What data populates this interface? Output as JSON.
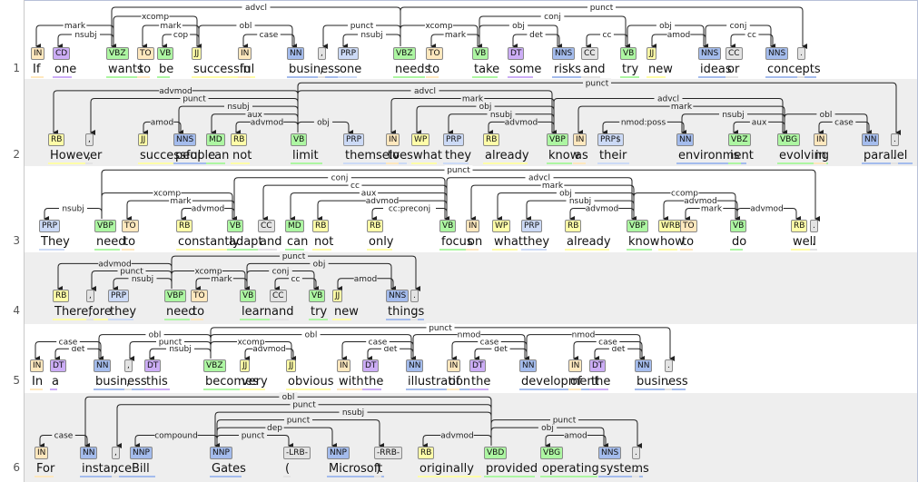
{
  "sentences": [
    {
      "num": "1",
      "tokens": [
        {
          "w": "If",
          "t": "IN"
        },
        {
          "w": "one",
          "t": "CD"
        },
        {
          "w": "wants",
          "t": "VBZ"
        },
        {
          "w": "to",
          "t": "TO"
        },
        {
          "w": "be",
          "t": "VB"
        },
        {
          "w": "successful",
          "t": "JJ"
        },
        {
          "w": "in",
          "t": "IN"
        },
        {
          "w": "business",
          "t": "NN"
        },
        {
          "w": ",",
          "t": ","
        },
        {
          "w": "one",
          "t": "PRP"
        },
        {
          "w": "needs",
          "t": "VBZ"
        },
        {
          "w": "to",
          "t": "TO"
        },
        {
          "w": "take",
          "t": "VB"
        },
        {
          "w": "some",
          "t": "DT"
        },
        {
          "w": "risks",
          "t": "NNS"
        },
        {
          "w": "and",
          "t": "CC"
        },
        {
          "w": "try",
          "t": "VB"
        },
        {
          "w": "new",
          "t": "JJ"
        },
        {
          "w": "ideas",
          "t": "NNS"
        },
        {
          "w": "or",
          "t": "CC"
        },
        {
          "w": "concepts",
          "t": "NNS"
        },
        {
          "w": ".",
          "t": "."
        }
      ],
      "arcs": [
        {
          "h": 2,
          "d": 0,
          "l": "mark"
        },
        {
          "h": 2,
          "d": 1,
          "l": "nsubj"
        },
        {
          "h": 2,
          "d": 5,
          "l": "xcomp"
        },
        {
          "h": 5,
          "d": 3,
          "l": "mark"
        },
        {
          "h": 5,
          "d": 4,
          "l": "cop"
        },
        {
          "h": 5,
          "d": 7,
          "l": "obl"
        },
        {
          "h": 7,
          "d": 6,
          "l": "case"
        },
        {
          "h": 10,
          "d": 2,
          "l": "advcl"
        },
        {
          "h": 10,
          "d": 8,
          "l": "punct"
        },
        {
          "h": 10,
          "d": 9,
          "l": "nsubj"
        },
        {
          "h": 10,
          "d": 12,
          "l": "xcomp"
        },
        {
          "h": 12,
          "d": 11,
          "l": "mark"
        },
        {
          "h": 12,
          "d": 14,
          "l": "obj"
        },
        {
          "h": 14,
          "d": 13,
          "l": "det"
        },
        {
          "h": 12,
          "d": 16,
          "l": "conj"
        },
        {
          "h": 16,
          "d": 15,
          "l": "cc"
        },
        {
          "h": 16,
          "d": 18,
          "l": "obj"
        },
        {
          "h": 18,
          "d": 17,
          "l": "amod"
        },
        {
          "h": 18,
          "d": 20,
          "l": "conj"
        },
        {
          "h": 20,
          "d": 19,
          "l": "cc"
        },
        {
          "h": 10,
          "d": 21,
          "l": "punct"
        }
      ]
    },
    {
      "num": "2",
      "tokens": [
        {
          "w": "However",
          "t": "RB"
        },
        {
          "w": ",",
          "t": ","
        },
        {
          "w": "successful",
          "t": "JJ"
        },
        {
          "w": "people",
          "t": "NNS"
        },
        {
          "w": "can",
          "t": "MD"
        },
        {
          "w": "not",
          "t": "RB"
        },
        {
          "w": "limit",
          "t": "VB"
        },
        {
          "w": "themselves",
          "t": "PRP"
        },
        {
          "w": "to",
          "t": "IN"
        },
        {
          "w": "what",
          "t": "WP"
        },
        {
          "w": "they",
          "t": "PRP"
        },
        {
          "w": "already",
          "t": "RB"
        },
        {
          "w": "know",
          "t": "VBP"
        },
        {
          "w": "as",
          "t": "IN"
        },
        {
          "w": "their",
          "t": "PRP$"
        },
        {
          "w": "environment",
          "t": "NN"
        },
        {
          "w": "is",
          "t": "VBZ"
        },
        {
          "w": "evolving",
          "t": "VBG"
        },
        {
          "w": "in",
          "t": "IN"
        },
        {
          "w": "parallel",
          "t": "NN"
        },
        {
          "w": ".",
          "t": "."
        }
      ],
      "arcs": [
        {
          "h": 6,
          "d": 0,
          "l": "advmod"
        },
        {
          "h": 6,
          "d": 1,
          "l": "punct"
        },
        {
          "h": 3,
          "d": 2,
          "l": "amod"
        },
        {
          "h": 6,
          "d": 3,
          "l": "nsubj"
        },
        {
          "h": 6,
          "d": 4,
          "l": "aux"
        },
        {
          "h": 6,
          "d": 5,
          "l": "advmod"
        },
        {
          "h": 6,
          "d": 7,
          "l": "obj"
        },
        {
          "h": 6,
          "d": 12,
          "l": "advcl"
        },
        {
          "h": 12,
          "d": 8,
          "l": "mark"
        },
        {
          "h": 12,
          "d": 9,
          "l": "obj"
        },
        {
          "h": 12,
          "d": 10,
          "l": "nsubj"
        },
        {
          "h": 12,
          "d": 11,
          "l": "advmod"
        },
        {
          "h": 12,
          "d": 17,
          "l": "advcl"
        },
        {
          "h": 17,
          "d": 13,
          "l": "mark"
        },
        {
          "h": 15,
          "d": 14,
          "l": "nmod:poss"
        },
        {
          "h": 17,
          "d": 15,
          "l": "nsubj"
        },
        {
          "h": 17,
          "d": 16,
          "l": "aux"
        },
        {
          "h": 17,
          "d": 19,
          "l": "obl"
        },
        {
          "h": 19,
          "d": 18,
          "l": "case"
        },
        {
          "h": 6,
          "d": 20,
          "l": "punct"
        }
      ]
    },
    {
      "num": "3",
      "tokens": [
        {
          "w": "They",
          "t": "PRP"
        },
        {
          "w": "need",
          "t": "VBP"
        },
        {
          "w": "to",
          "t": "TO"
        },
        {
          "w": "constantly",
          "t": "RB"
        },
        {
          "w": "adapt",
          "t": "VB"
        },
        {
          "w": "and",
          "t": "CC"
        },
        {
          "w": "can",
          "t": "MD"
        },
        {
          "w": "not",
          "t": "RB"
        },
        {
          "w": "only",
          "t": "RB"
        },
        {
          "w": "focus",
          "t": "VB"
        },
        {
          "w": "on",
          "t": "IN"
        },
        {
          "w": "what",
          "t": "WP"
        },
        {
          "w": "they",
          "t": "PRP"
        },
        {
          "w": "already",
          "t": "RB"
        },
        {
          "w": "know",
          "t": "VBP"
        },
        {
          "w": "how",
          "t": "WRB"
        },
        {
          "w": "to",
          "t": "TO"
        },
        {
          "w": "do",
          "t": "VB"
        },
        {
          "w": "well",
          "t": "RB"
        },
        {
          "w": ".",
          "t": "."
        }
      ],
      "arcs": [
        {
          "h": 1,
          "d": 0,
          "l": "nsubj"
        },
        {
          "h": 1,
          "d": 4,
          "l": "xcomp"
        },
        {
          "h": 4,
          "d": 2,
          "l": "mark"
        },
        {
          "h": 4,
          "d": 3,
          "l": "advmod"
        },
        {
          "h": 4,
          "d": 9,
          "l": "conj"
        },
        {
          "h": 9,
          "d": 5,
          "l": "cc"
        },
        {
          "h": 9,
          "d": 6,
          "l": "aux"
        },
        {
          "h": 9,
          "d": 7,
          "l": "advmod"
        },
        {
          "h": 9,
          "d": 8,
          "l": "cc:preconj"
        },
        {
          "h": 9,
          "d": 14,
          "l": "advcl"
        },
        {
          "h": 14,
          "d": 10,
          "l": "mark"
        },
        {
          "h": 14,
          "d": 11,
          "l": "obj"
        },
        {
          "h": 14,
          "d": 12,
          "l": "nsubj"
        },
        {
          "h": 14,
          "d": 13,
          "l": "advmod"
        },
        {
          "h": 14,
          "d": 17,
          "l": "ccomp"
        },
        {
          "h": 17,
          "d": 15,
          "l": "advmod"
        },
        {
          "h": 17,
          "d": 16,
          "l": "mark"
        },
        {
          "h": 17,
          "d": 18,
          "l": "advmod"
        },
        {
          "h": 1,
          "d": 19,
          "l": "punct"
        }
      ]
    },
    {
      "num": "4",
      "tokens": [
        {
          "w": "Therefore",
          "t": "RB"
        },
        {
          "w": ",",
          "t": ","
        },
        {
          "w": "they",
          "t": "PRP"
        },
        {
          "w": "need",
          "t": "VBP"
        },
        {
          "w": "to",
          "t": "TO"
        },
        {
          "w": "learn",
          "t": "VB"
        },
        {
          "w": "and",
          "t": "CC"
        },
        {
          "w": "try",
          "t": "VB"
        },
        {
          "w": "new",
          "t": "JJ"
        },
        {
          "w": "things",
          "t": "NNS"
        },
        {
          "w": ".",
          "t": "."
        }
      ],
      "arcs": [
        {
          "h": 3,
          "d": 0,
          "l": "advmod"
        },
        {
          "h": 3,
          "d": 1,
          "l": "punct"
        },
        {
          "h": 3,
          "d": 2,
          "l": "nsubj"
        },
        {
          "h": 3,
          "d": 5,
          "l": "xcomp"
        },
        {
          "h": 5,
          "d": 4,
          "l": "mark"
        },
        {
          "h": 5,
          "d": 7,
          "l": "conj"
        },
        {
          "h": 7,
          "d": 6,
          "l": "cc"
        },
        {
          "h": 5,
          "d": 9,
          "l": "obj"
        },
        {
          "h": 9,
          "d": 8,
          "l": "amod"
        },
        {
          "h": 3,
          "d": 10,
          "l": "punct"
        }
      ]
    },
    {
      "num": "5",
      "tokens": [
        {
          "w": "In",
          "t": "IN"
        },
        {
          "w": "a",
          "t": "DT"
        },
        {
          "w": "business",
          "t": "NN"
        },
        {
          "w": ",",
          "t": ","
        },
        {
          "w": "this",
          "t": "DT"
        },
        {
          "w": "becomes",
          "t": "VBZ"
        },
        {
          "w": "very",
          "t": "JJ"
        },
        {
          "w": "obvious",
          "t": "JJ"
        },
        {
          "w": "with",
          "t": "IN"
        },
        {
          "w": "the",
          "t": "DT"
        },
        {
          "w": "illustration",
          "t": "NN"
        },
        {
          "w": "of",
          "t": "IN"
        },
        {
          "w": "the",
          "t": "DT"
        },
        {
          "w": "development",
          "t": "NN"
        },
        {
          "w": "of",
          "t": "IN"
        },
        {
          "w": "the",
          "t": "DT"
        },
        {
          "w": "business",
          "t": "NN"
        },
        {
          "w": ".",
          "t": "."
        }
      ],
      "arcs": [
        {
          "h": 2,
          "d": 0,
          "l": "case"
        },
        {
          "h": 2,
          "d": 1,
          "l": "det"
        },
        {
          "h": 5,
          "d": 2,
          "l": "obl"
        },
        {
          "h": 5,
          "d": 3,
          "l": "punct"
        },
        {
          "h": 5,
          "d": 4,
          "l": "nsubj"
        },
        {
          "h": 5,
          "d": 7,
          "l": "xcomp"
        },
        {
          "h": 7,
          "d": 6,
          "l": "advmod"
        },
        {
          "h": 5,
          "d": 10,
          "l": "obl"
        },
        {
          "h": 10,
          "d": 8,
          "l": "case"
        },
        {
          "h": 10,
          "d": 9,
          "l": "det"
        },
        {
          "h": 10,
          "d": 13,
          "l": "nmod"
        },
        {
          "h": 13,
          "d": 11,
          "l": "case"
        },
        {
          "h": 13,
          "d": 12,
          "l": "det"
        },
        {
          "h": 13,
          "d": 16,
          "l": "nmod"
        },
        {
          "h": 16,
          "d": 14,
          "l": "case"
        },
        {
          "h": 16,
          "d": 15,
          "l": "det"
        },
        {
          "h": 5,
          "d": 17,
          "l": "punct"
        }
      ]
    },
    {
      "num": "6",
      "tokens": [
        {
          "w": "For",
          "t": "IN"
        },
        {
          "w": "instance",
          "t": "NN"
        },
        {
          "w": ",",
          "t": ","
        },
        {
          "w": "Bill",
          "t": "NNP"
        },
        {
          "w": "Gates",
          "t": "NNP"
        },
        {
          "w": "(",
          "t": "-LRB-"
        },
        {
          "w": "Microsoft",
          "t": "NNP"
        },
        {
          "w": ")",
          "t": "-RRB-"
        },
        {
          "w": "originally",
          "t": "RB"
        },
        {
          "w": "provided",
          "t": "VBD"
        },
        {
          "w": "operating",
          "t": "VBG"
        },
        {
          "w": "systems",
          "t": "NNS"
        },
        {
          "w": ".",
          "t": "."
        }
      ],
      "arcs": [
        {
          "h": 1,
          "d": 0,
          "l": "case"
        },
        {
          "h": 9,
          "d": 1,
          "l": "obl"
        },
        {
          "h": 9,
          "d": 2,
          "l": "punct"
        },
        {
          "h": 4,
          "d": 3,
          "l": "compound"
        },
        {
          "h": 9,
          "d": 4,
          "l": "nsubj"
        },
        {
          "h": 4,
          "d": 5,
          "l": "punct"
        },
        {
          "h": 4,
          "d": 6,
          "l": "dep"
        },
        {
          "h": 4,
          "d": 7,
          "l": "punct"
        },
        {
          "h": 9,
          "d": 8,
          "l": "advmod"
        },
        {
          "h": 9,
          "d": 11,
          "l": "obj"
        },
        {
          "h": 11,
          "d": 10,
          "l": "amod"
        },
        {
          "h": 9,
          "d": 12,
          "l": "punct"
        }
      ]
    }
  ],
  "tag_colors": {
    "IN": "#ffe8be",
    "TO": "#ffe8be",
    "CD": "#ccadf6",
    "DT": "#ccadf6",
    "VBZ": "#adf6a2",
    "VB": "#adf6a2",
    "VBP": "#adf6a2",
    "VBD": "#adf6a2",
    "VBG": "#adf6a2",
    "JJ": "#fffda8",
    "RB": "#fffda8",
    "WRB": "#fffda8",
    "WP": "#fffda8",
    "MD": "#adf6a2",
    "NN": "#a4bced",
    "NNS": "#a4bced",
    "NNP": "#a4bced",
    "PRP": "#ccdaf6",
    "PRP$": "#ccdaf6",
    "CC": "#e3e3e3",
    ",": "#e3e3e3",
    ".": "#e3e3e3",
    "-LRB-": "#e3e3e3",
    "-RRB-": "#e3e3e3"
  }
}
